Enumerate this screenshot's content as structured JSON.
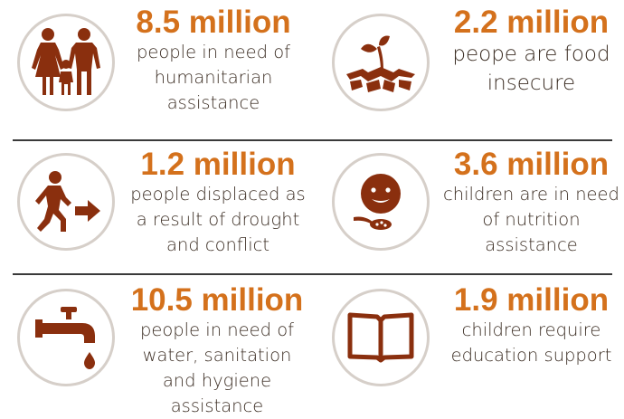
{
  "palette": {
    "figure_color": "#d4711c",
    "text_color": "#3b2d23",
    "icon_color": "#8a2f0e",
    "circle_border": "#d6cfc9",
    "divider_color": "#3a3a3a"
  },
  "stats": [
    {
      "figure": "8.5 million",
      "description": "people in need of humanitarian assistance",
      "icon": "family-icon"
    },
    {
      "figure": "2.2 million",
      "description": "peope are food insecure",
      "icon": "sprout-dry-soil-icon"
    },
    {
      "figure": "1.2 million",
      "description": "people displaced as a result of drought and conflict",
      "icon": "displaced-person-icon"
    },
    {
      "figure": "3.6 million",
      "description": "children are in need of nutrition assistance",
      "icon": "child-spoon-icon"
    },
    {
      "figure": "10.5 million",
      "description": "people in need of water, sanitation and hygiene assistance",
      "icon": "water-tap-icon"
    },
    {
      "figure": "1.9 million",
      "description": "children require education support",
      "icon": "open-book-icon"
    }
  ]
}
